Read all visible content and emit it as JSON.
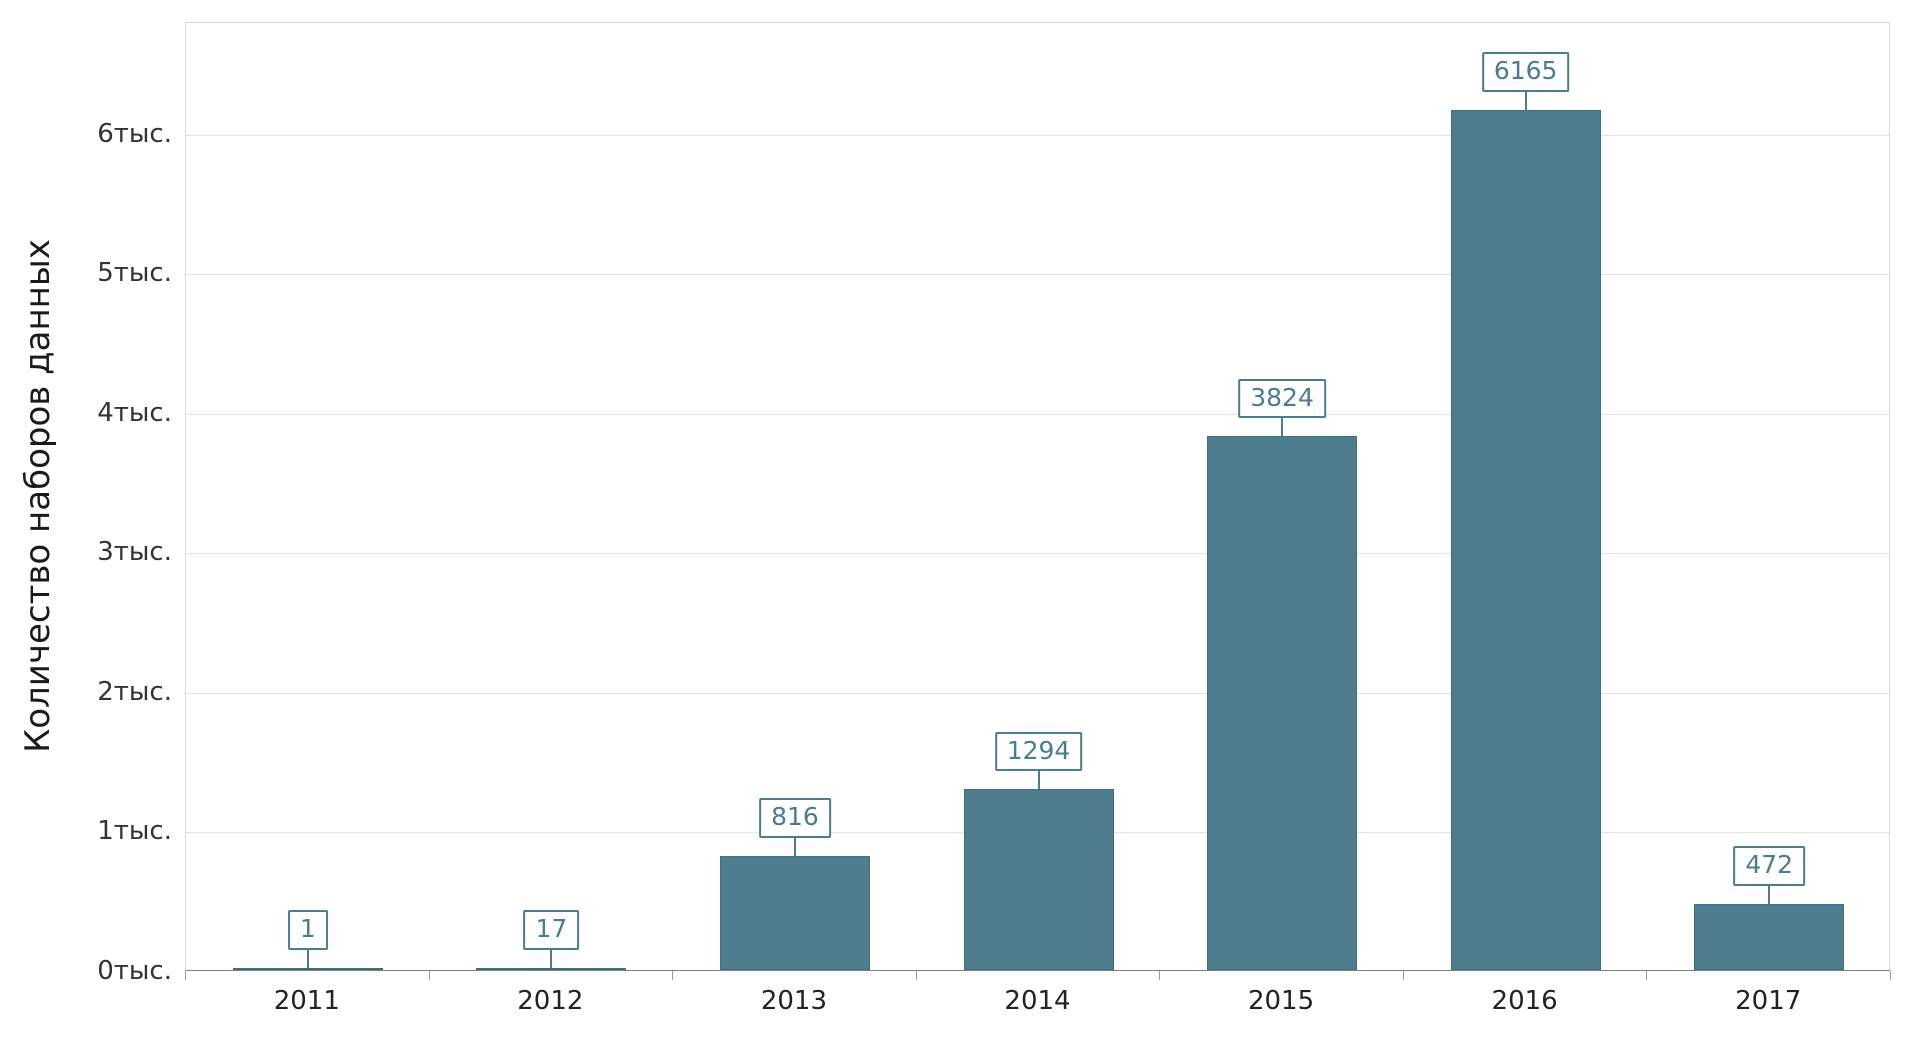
{
  "chart_data": {
    "type": "bar",
    "title": "",
    "categories": [
      "2011",
      "2012",
      "2013",
      "2014",
      "2015",
      "2016",
      "2017"
    ],
    "values": [
      1,
      17,
      816,
      1294,
      3824,
      6165,
      472
    ],
    "data_labels": [
      "1",
      "17",
      "816",
      "1294",
      "3824",
      "6165",
      "472"
    ],
    "xlabel": "",
    "ylabel": "Количество наборов данных",
    "ylim": [
      0,
      6800
    ],
    "y_ticks": [
      {
        "value": 0,
        "label": "0тыс."
      },
      {
        "value": 1000,
        "label": "1тыс."
      },
      {
        "value": 2000,
        "label": "2тыс."
      },
      {
        "value": 3000,
        "label": "3тыс."
      },
      {
        "value": 4000,
        "label": "4тыс."
      },
      {
        "value": 5000,
        "label": "5тыс."
      },
      {
        "value": 6000,
        "label": "6тыс."
      }
    ],
    "grid": true,
    "legend": "none",
    "colors": {
      "bar_fill": "#4e7e8d",
      "bar_stroke": "#3f6e7c",
      "callout_border": "#4a7d8e",
      "callout_text": "#4a7d8e",
      "grid_line": "#e2e2e2",
      "axis_line": "#7f7f7f",
      "tick_text": "#333333"
    }
  }
}
